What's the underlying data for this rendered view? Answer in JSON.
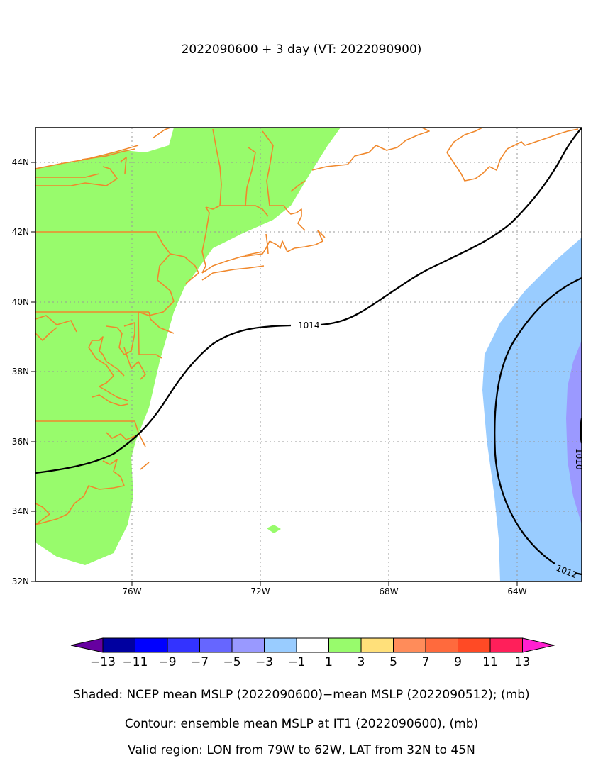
{
  "title": "2022090600 + 3 day (VT: 2022090900)",
  "map": {
    "lon_range": [
      "79W",
      "62W"
    ],
    "lat_range": [
      "32N",
      "45N"
    ],
    "lon_ticks": [
      "76W",
      "72W",
      "68W",
      "64W"
    ],
    "lat_ticks": [
      "32N",
      "34N",
      "36N",
      "38N",
      "40N",
      "42N",
      "44N"
    ],
    "gridlines": "dotted",
    "coastline_color": "#f0882c",
    "contour_labels": [
      "1014",
      "1012",
      "1010"
    ],
    "shading_colors": {
      "positive_1_3": "#98fb6c",
      "negative_1_3": "#99ccff",
      "negative_3_5": "#9b99ff"
    }
  },
  "colorbar": {
    "labels": [
      "−13",
      "−11",
      "−9",
      "−7",
      "−5",
      "−3",
      "−1",
      "1",
      "3",
      "5",
      "7",
      "9",
      "11",
      "13"
    ],
    "colors": [
      "#0000a0",
      "#0000ff",
      "#3333ff",
      "#6666ff",
      "#9999ff",
      "#99ccff",
      "#ffffff",
      "#98fb6c",
      "#ffe07a",
      "#ff8c5a",
      "#ff6a3d",
      "#ff4a25",
      "#ff1f5a"
    ],
    "low_color": "#6600a0",
    "high_color": "#ff20d0"
  },
  "captions": {
    "shaded": "Shaded: NCEP mean MSLP (2022090600)−mean MSLP (2022090512); (mb)",
    "contour": "Contour: ensemble mean MSLP at IT1 (2022090600), (mb)",
    "region": "Valid region: LON from 79W to 62W, LAT from 32N to 45N"
  }
}
